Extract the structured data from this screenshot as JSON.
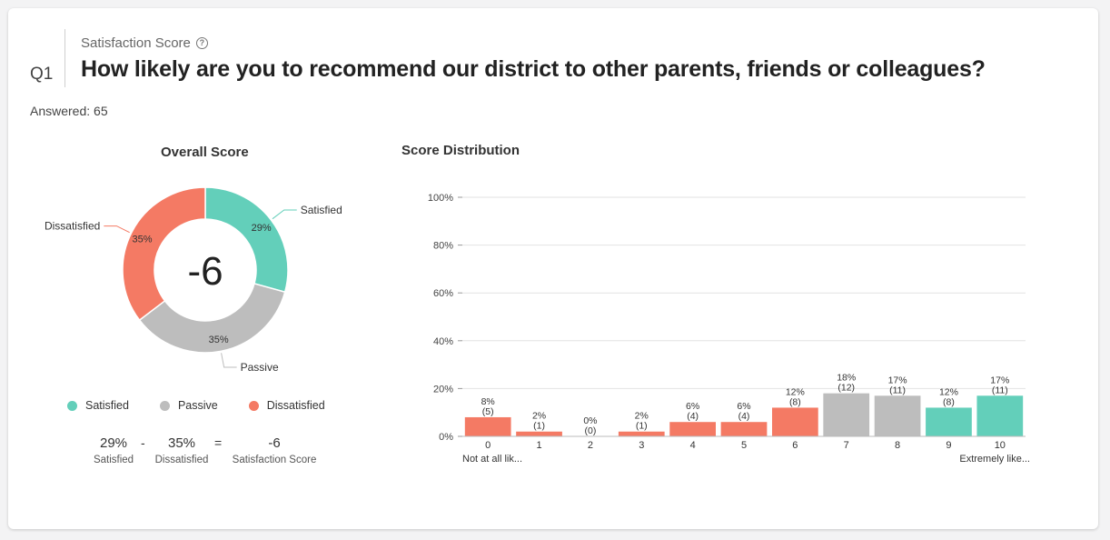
{
  "question": {
    "number": "Q1",
    "type_label": "Satisfaction Score",
    "text": "How likely are you to recommend our district to other parents, friends or colleagues?",
    "answered": "Answered: 65"
  },
  "overall": {
    "title": "Overall Score",
    "score": "-6",
    "legend": [
      {
        "label": "Satisfied",
        "color": "#63cfba"
      },
      {
        "label": "Passive",
        "color": "#bdbdbd"
      },
      {
        "label": "Dissatisfied",
        "color": "#f47a64"
      }
    ],
    "formula": {
      "satisfied_value": "29%",
      "satisfied_label": "Satisfied",
      "minus": "-",
      "dissatisfied_value": "35%",
      "dissatisfied_label": "Dissatisfied",
      "equals": "=",
      "score_value": "-6",
      "score_label": "Satisfaction Score"
    }
  },
  "distribution": {
    "title": "Score Distribution"
  },
  "chart_data": [
    {
      "type": "pie",
      "title": "Overall Score",
      "center_label": "-6",
      "slices": [
        {
          "label": "Satisfied",
          "value": 29,
          "display": "29%",
          "color": "#63cfba"
        },
        {
          "label": "Passive",
          "value": 35,
          "display": "35%",
          "color": "#bdbdbd"
        },
        {
          "label": "Dissatisfied",
          "value": 35,
          "display": "35%",
          "color": "#f47a64"
        }
      ]
    },
    {
      "type": "bar",
      "title": "Score Distribution",
      "categories": [
        "0",
        "1",
        "2",
        "3",
        "4",
        "5",
        "6",
        "7",
        "8",
        "9",
        "10"
      ],
      "values": [
        8,
        2,
        0,
        2,
        6,
        6,
        12,
        18,
        17,
        12,
        17
      ],
      "counts": [
        5,
        1,
        0,
        1,
        4,
        4,
        8,
        12,
        11,
        8,
        11
      ],
      "groups": [
        "Dissatisfied",
        "Dissatisfied",
        "Dissatisfied",
        "Dissatisfied",
        "Dissatisfied",
        "Dissatisfied",
        "Dissatisfied",
        "Passive",
        "Passive",
        "Satisfied",
        "Satisfied"
      ],
      "group_colors": {
        "Dissatisfied": "#f47a64",
        "Passive": "#bdbdbd",
        "Satisfied": "#63cfba"
      },
      "ylim": [
        0,
        100
      ],
      "yticks": [
        "0%",
        "20%",
        "40%",
        "60%",
        "80%",
        "100%"
      ],
      "endpoint_labels": {
        "low": "Not at all lik...",
        "high": "Extremely like..."
      },
      "grid": true
    }
  ]
}
